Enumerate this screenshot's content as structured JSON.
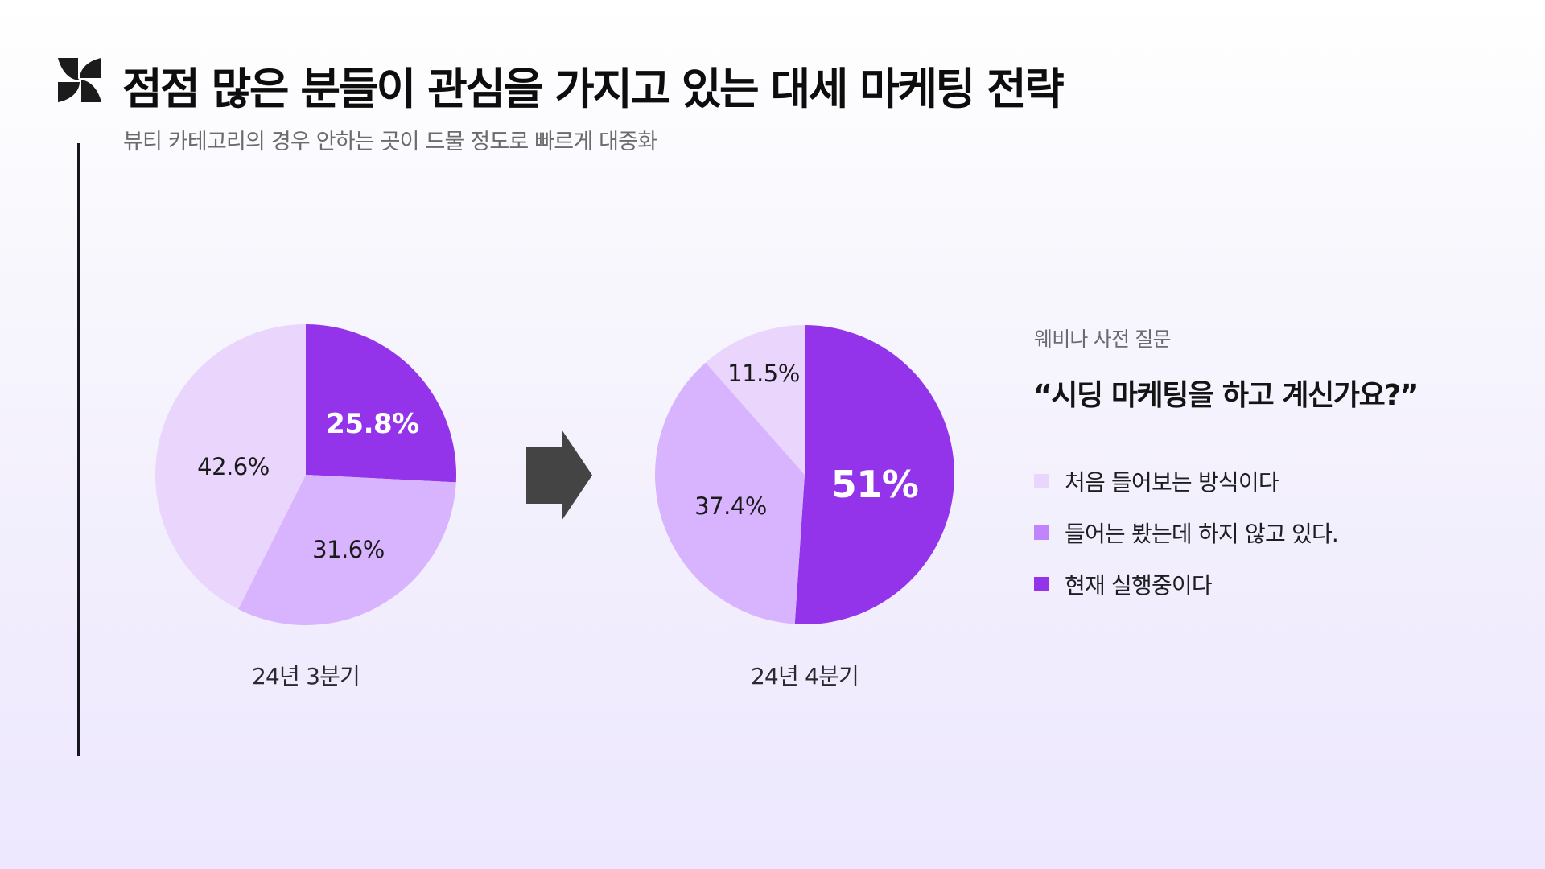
{
  "header": {
    "logo_icon": "pinwheel-logo-icon",
    "title": "점점 많은 분들이 관심을 가지고 있는 대세 마케팅 전략",
    "subtitle": "뷰티 카테고리의 경우 안하는 곳이 드물 정도로 빠르게 대중화"
  },
  "colors": {
    "light": "#ead6fd",
    "mid": "#d8b4fe",
    "dark": "#9333ea",
    "legend_mid": "#c084fc",
    "arrow": "#444444",
    "text": "#111111"
  },
  "arrow_icon": "right-arrow-icon",
  "side": {
    "kicker": "웨비나 사전 질문",
    "question": "“시딩 마케팅을 하고 계신가요?”",
    "legend": [
      {
        "label": "처음 들어보는 방식이다",
        "color_key": "light"
      },
      {
        "label": "들어는 봤는데 하지 않고 있다.",
        "color_key": "legend_mid"
      },
      {
        "label": "현재 실행중이다",
        "color_key": "dark"
      }
    ]
  },
  "chart_data": [
    {
      "type": "pie",
      "title": "24년 3분기",
      "question": "시딩 마케팅을 하고 계신가요?",
      "slices": [
        {
          "label": "현재 실행중이다",
          "value": 25.8,
          "display": "25.8%",
          "color_key": "dark"
        },
        {
          "label": "들어는 봤는데 하지 않고 있다.",
          "value": 31.6,
          "display": "31.6%",
          "color_key": "mid"
        },
        {
          "label": "처음 들어보는 방식이다",
          "value": 42.6,
          "display": "42.6%",
          "color_key": "light"
        }
      ],
      "start_angle": "12 o'clock",
      "direction": "clockwise"
    },
    {
      "type": "pie",
      "title": "24년 4분기",
      "question": "시딩 마케팅을 하고 계신가요?",
      "slices": [
        {
          "label": "현재 실행중이다",
          "value": 51,
          "display": "51%",
          "color_key": "dark"
        },
        {
          "label": "들어는 봤는데 하지 않고 있다.",
          "value": 37.4,
          "display": "37.4%",
          "color_key": "mid"
        },
        {
          "label": "처음 들어보는 방식이다",
          "value": 11.5,
          "display": "11.5%",
          "color_key": "light"
        }
      ],
      "start_angle": "12 o'clock",
      "direction": "clockwise"
    }
  ]
}
